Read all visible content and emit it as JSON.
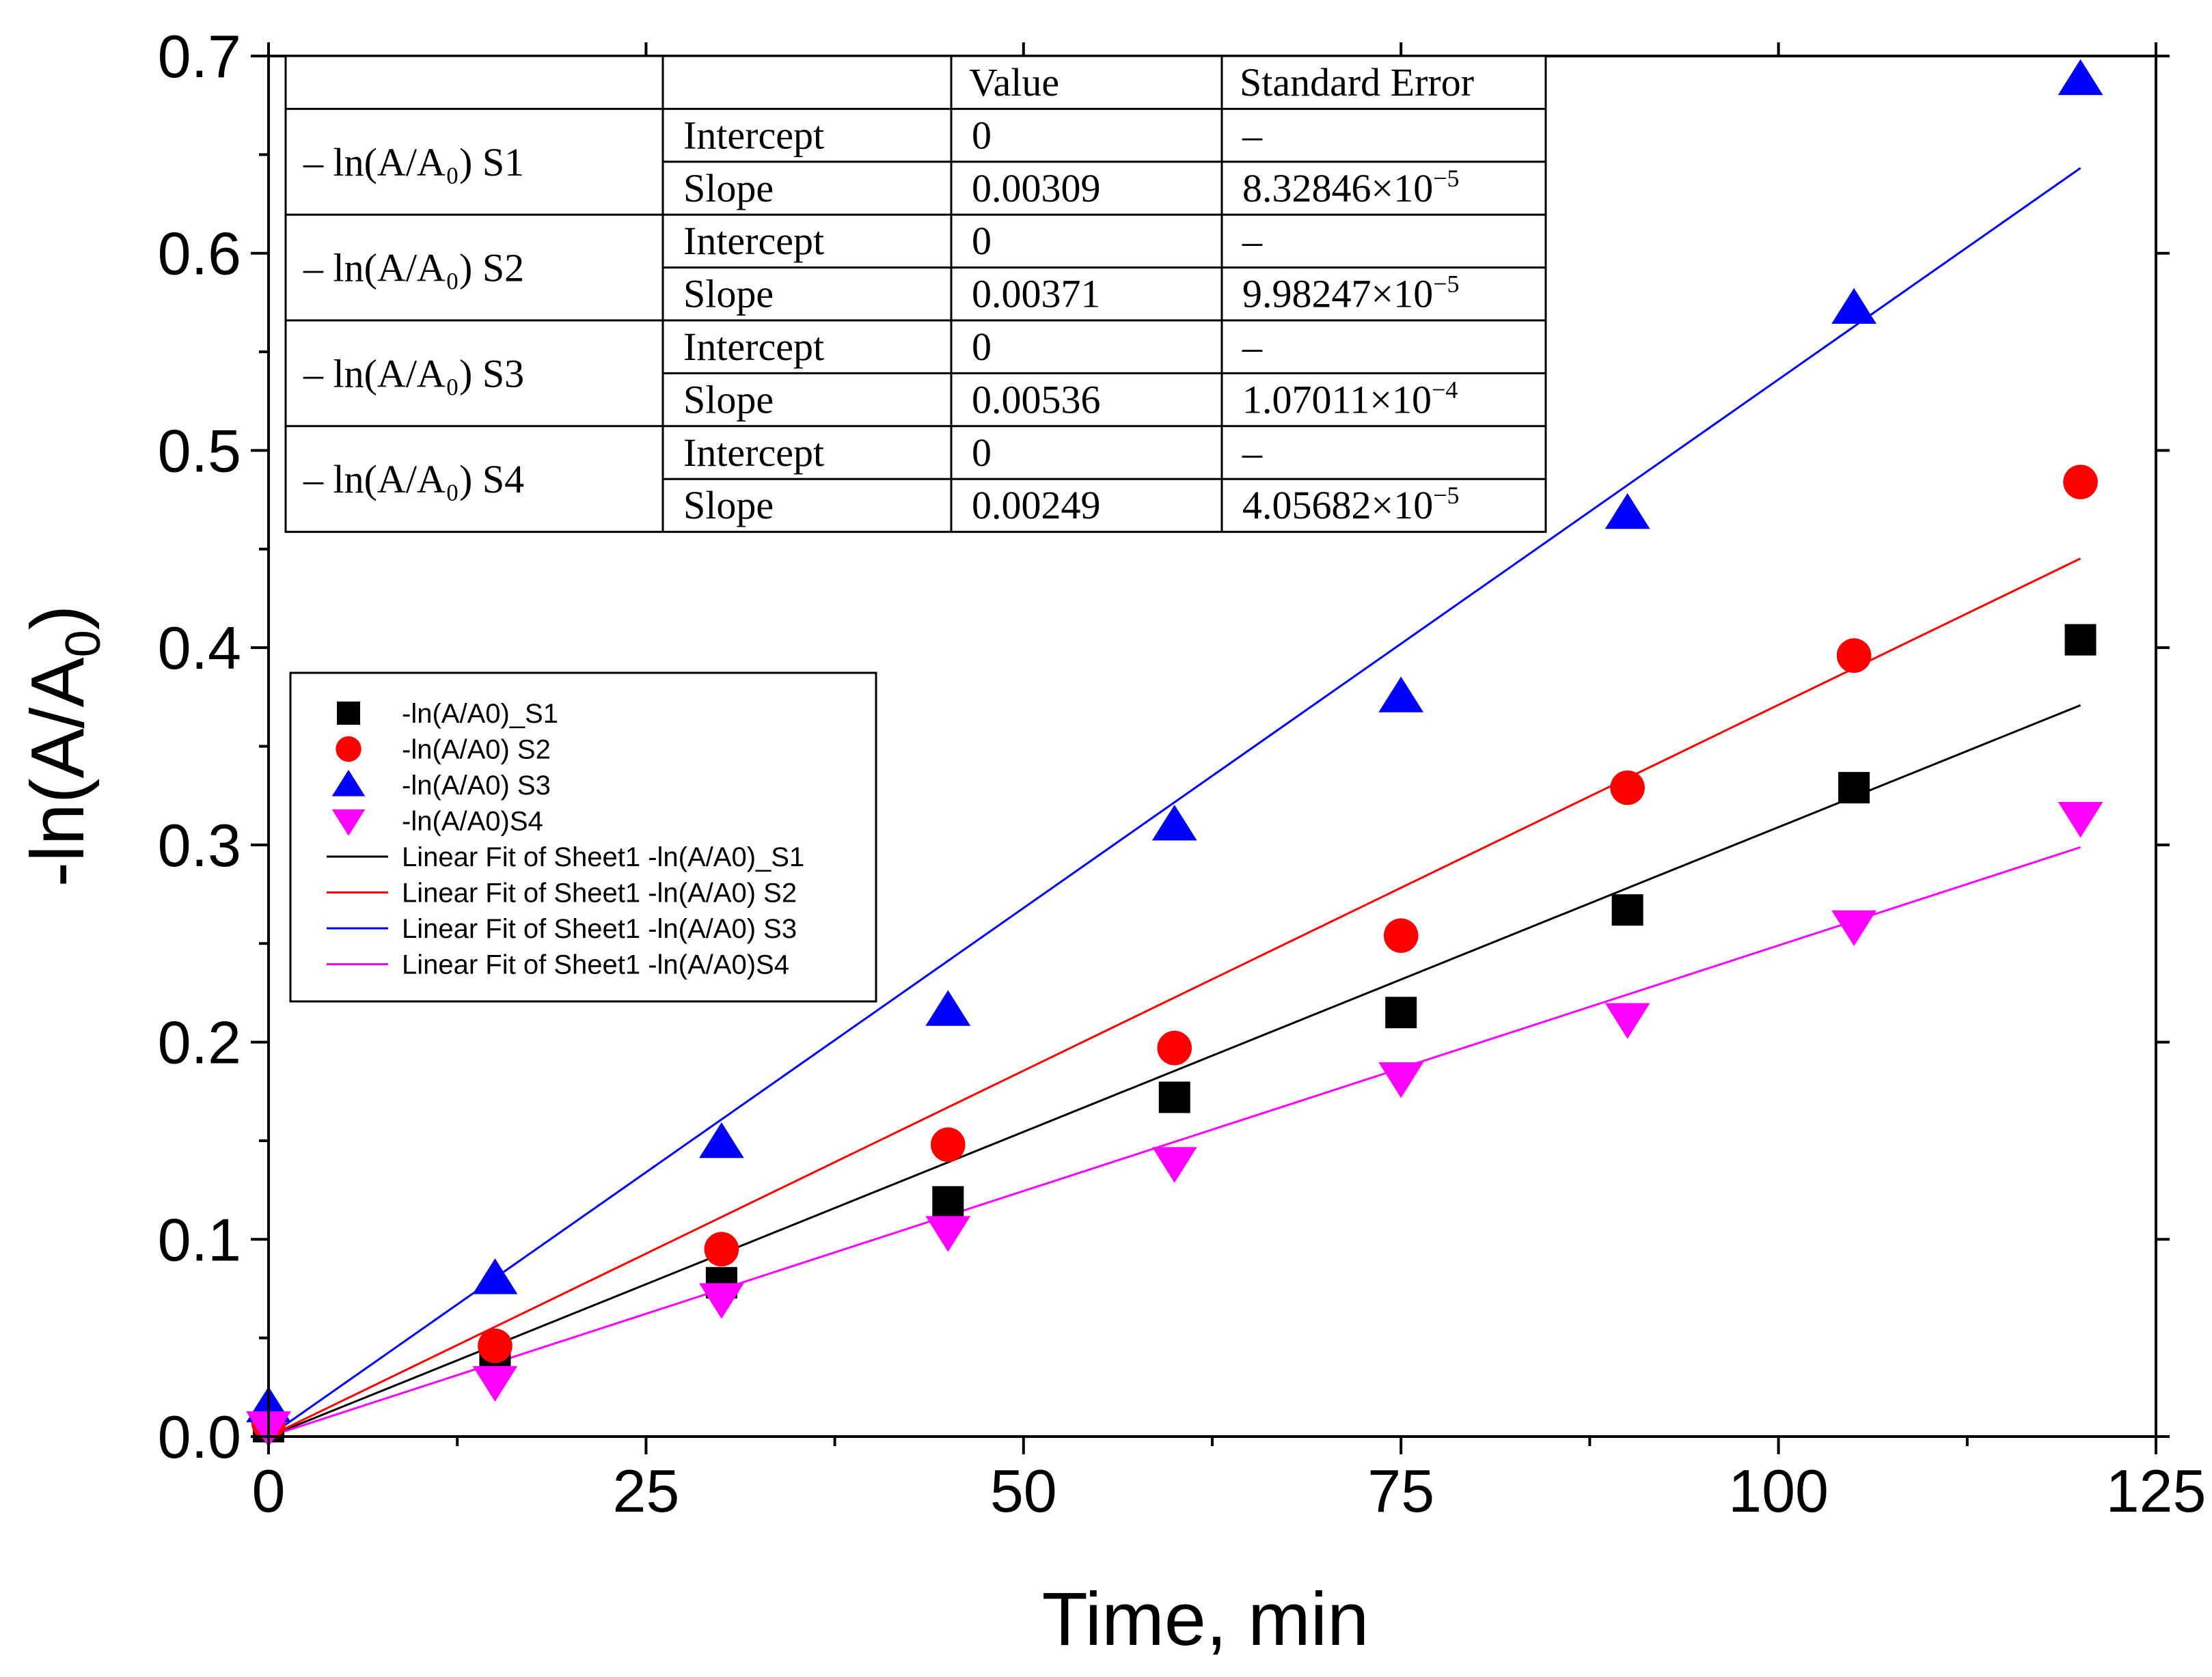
{
  "chart_data": {
    "type": "scatter",
    "xlabel": "Time, min",
    "ylabel": "-ln(A/A0)",
    "xlim": [
      0,
      125
    ],
    "ylim": [
      0,
      0.7
    ],
    "x_ticks": [
      "0",
      "25",
      "50",
      "75",
      "100",
      "125"
    ],
    "y_ticks": [
      "0.0",
      "0.1",
      "0.2",
      "0.3",
      "0.4",
      "0.5",
      "0.6",
      "0.7"
    ],
    "grid": false,
    "legend_position": "center-left",
    "x": [
      0,
      15,
      30,
      45,
      60,
      75,
      90,
      105,
      120
    ],
    "series": [
      {
        "name": "-ln(A/A0)_S1",
        "marker": "square",
        "color": "#000000",
        "values": [
          0.005,
          0.04,
          0.078,
          0.119,
          0.172,
          0.215,
          0.267,
          0.329,
          0.404
        ]
      },
      {
        "name": "-ln(A/A0) S2",
        "marker": "circle",
        "color": "#ff0000",
        "values": [
          0.007,
          0.046,
          0.095,
          0.148,
          0.197,
          0.254,
          0.329,
          0.396,
          0.484
        ]
      },
      {
        "name": "-ln(A/A0) S3",
        "marker": "triangle-up",
        "color": "#0000ff",
        "values": [
          0.015,
          0.08,
          0.149,
          0.216,
          0.31,
          0.375,
          0.468,
          0.572,
          0.688
        ]
      },
      {
        "name": "-ln(A/A0)S4",
        "marker": "triangle-down",
        "color": "#ff00ff",
        "values": [
          0.005,
          0.028,
          0.07,
          0.104,
          0.139,
          0.182,
          0.212,
          0.259,
          0.314
        ]
      }
    ],
    "fits": [
      {
        "name": "Linear Fit of Sheet1 -ln(A/A0)_S1",
        "color": "#000000",
        "intercept": 0,
        "slope": 0.00309,
        "x_range": [
          0,
          120
        ]
      },
      {
        "name": "Linear Fit of Sheet1 -ln(A/A0) S2",
        "color": "#ff0000",
        "intercept": 0,
        "slope": 0.00371,
        "x_range": [
          0,
          120
        ]
      },
      {
        "name": "Linear Fit of Sheet1 -ln(A/A0) S3",
        "color": "#0000ff",
        "intercept": 0,
        "slope": 0.00536,
        "x_range": [
          0,
          120
        ]
      },
      {
        "name": "Linear Fit of Sheet1 -ln(A/A0)S4",
        "color": "#ff00ff",
        "intercept": 0,
        "slope": 0.00249,
        "x_range": [
          0,
          120
        ]
      }
    ],
    "table": {
      "headers": [
        "",
        "",
        "Value",
        "Standard Error"
      ],
      "groups": [
        {
          "label": "– ln(A/A₀) S1",
          "rows": [
            {
              "param": "Intercept",
              "value": "0",
              "se": "–"
            },
            {
              "param": "Slope",
              "value": "0.00309",
              "se_mantissa": "8.32846×10",
              "se_exp": "−5"
            }
          ]
        },
        {
          "label": "– ln(A/A₀) S2",
          "rows": [
            {
              "param": "Intercept",
              "value": "0",
              "se": "–"
            },
            {
              "param": "Slope",
              "value": "0.00371",
              "se_mantissa": "9.98247×10",
              "se_exp": "−5"
            }
          ]
        },
        {
          "label": "– ln(A/A₀) S3",
          "rows": [
            {
              "param": "Intercept",
              "value": "0",
              "se": "–"
            },
            {
              "param": "Slope",
              "value": "0.00536",
              "se_mantissa": "1.07011×10",
              "se_exp": "−4"
            }
          ]
        },
        {
          "label": "– ln(A/A₀) S4",
          "rows": [
            {
              "param": "Intercept",
              "value": "0",
              "se": "–"
            },
            {
              "param": "Slope",
              "value": "0.00249",
              "se_mantissa": "4.05682×10",
              "se_exp": "−5"
            }
          ]
        }
      ]
    }
  }
}
